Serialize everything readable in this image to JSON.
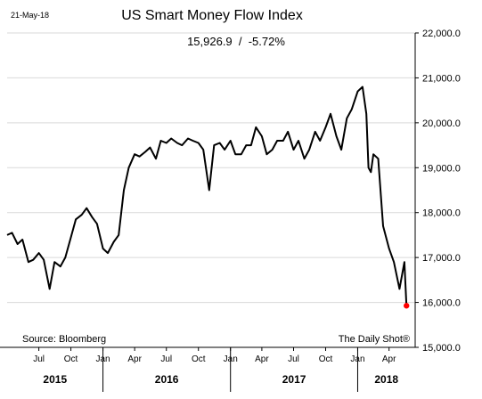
{
  "chart_data": {
    "type": "line",
    "title": "US Smart Money Flow Index",
    "subtitle": "15,926.9  /  -5.72%",
    "date_label": "21-May-18",
    "source": "Source: Bloomberg",
    "credit": "The Daily Shot®",
    "xlabel": "",
    "ylabel": "",
    "grid": true,
    "legend": "none",
    "ylim": [
      15000,
      22000
    ],
    "xlim": [
      "2015-04-01",
      "2018-06-15"
    ],
    "y_ticks": [
      {
        "value": 15000,
        "label": "15,000.0"
      },
      {
        "value": 16000,
        "label": "16,000.0"
      },
      {
        "value": 17000,
        "label": "17,000.0"
      },
      {
        "value": 18000,
        "label": "18,000.0"
      },
      {
        "value": 19000,
        "label": "19,000.0"
      },
      {
        "value": 20000,
        "label": "20,000.0"
      },
      {
        "value": 21000,
        "label": "21,000.0"
      },
      {
        "value": 22000,
        "label": "22,000.0"
      }
    ],
    "month_ticks": [
      {
        "date": "2015-07-01",
        "label": "Jul"
      },
      {
        "date": "2015-10-01",
        "label": "Oct"
      },
      {
        "date": "2016-01-01",
        "label": "Jan"
      },
      {
        "date": "2016-04-01",
        "label": "Apr"
      },
      {
        "date": "2016-07-01",
        "label": "Jul"
      },
      {
        "date": "2016-10-01",
        "label": "Oct"
      },
      {
        "date": "2017-01-01",
        "label": "Jan"
      },
      {
        "date": "2017-04-01",
        "label": "Apr"
      },
      {
        "date": "2017-07-01",
        "label": "Jul"
      },
      {
        "date": "2017-10-01",
        "label": "Oct"
      },
      {
        "date": "2018-01-01",
        "label": "Jan"
      },
      {
        "date": "2018-04-01",
        "label": "Apr"
      }
    ],
    "year_labels": [
      {
        "label": "2015",
        "from": "2015-04-01",
        "to": "2016-01-01"
      },
      {
        "label": "2016",
        "from": "2016-01-01",
        "to": "2017-01-01"
      },
      {
        "label": "2017",
        "from": "2017-01-01",
        "to": "2018-01-01"
      },
      {
        "label": "2018",
        "from": "2018-01-01",
        "to": "2018-06-15"
      }
    ],
    "year_dividers": [
      "2016-01-01",
      "2017-01-01",
      "2018-01-01"
    ],
    "last_point": {
      "date": "2018-05-21",
      "value": 15926.9,
      "color": "#ff0000"
    },
    "line_color": "#000000",
    "grid_color": "#d9d9d9",
    "series": [
      {
        "x": [
          "2015-04-01",
          "2015-04-15",
          "2015-05-01",
          "2015-05-15",
          "2015-06-01",
          "2015-06-15",
          "2015-07-01",
          "2015-07-15",
          "2015-08-01",
          "2015-08-15",
          "2015-09-01",
          "2015-09-15",
          "2015-10-01",
          "2015-10-15",
          "2015-11-01",
          "2015-11-15",
          "2015-12-01",
          "2015-12-15",
          "2016-01-01",
          "2016-01-15",
          "2016-02-01",
          "2016-02-15",
          "2016-03-01",
          "2016-03-15",
          "2016-04-01",
          "2016-04-15",
          "2016-05-01",
          "2016-05-15",
          "2016-06-01",
          "2016-06-15",
          "2016-07-01",
          "2016-07-15",
          "2016-08-01",
          "2016-08-15",
          "2016-09-01",
          "2016-09-15",
          "2016-10-01",
          "2016-10-15",
          "2016-11-01",
          "2016-11-15",
          "2016-12-01",
          "2016-12-15",
          "2017-01-01",
          "2017-01-15",
          "2017-02-01",
          "2017-02-15",
          "2017-03-01",
          "2017-03-15",
          "2017-04-01",
          "2017-04-15",
          "2017-05-01",
          "2017-05-15",
          "2017-06-01",
          "2017-06-15",
          "2017-07-01",
          "2017-07-15",
          "2017-08-01",
          "2017-08-15",
          "2017-09-01",
          "2017-09-15",
          "2017-10-01",
          "2017-10-15",
          "2017-11-01",
          "2017-11-15",
          "2017-12-01",
          "2017-12-15",
          "2018-01-01",
          "2018-01-15",
          "2018-01-26",
          "2018-02-01",
          "2018-02-08",
          "2018-02-15",
          "2018-03-01",
          "2018-03-15",
          "2018-04-01",
          "2018-04-15",
          "2018-05-01",
          "2018-05-15",
          "2018-05-21"
        ],
        "values": [
          17500,
          17550,
          17300,
          17400,
          16900,
          16950,
          17100,
          16950,
          16300,
          16900,
          16800,
          17000,
          17450,
          17850,
          17950,
          18100,
          17900,
          17750,
          17200,
          17100,
          17350,
          17500,
          18500,
          19000,
          19300,
          19250,
          19350,
          19450,
          19200,
          19600,
          19550,
          19650,
          19550,
          19500,
          19650,
          19600,
          19550,
          19400,
          18500,
          19500,
          19550,
          19400,
          19600,
          19300,
          19300,
          19500,
          19500,
          19900,
          19700,
          19300,
          19400,
          19600,
          19600,
          19800,
          19400,
          19600,
          19200,
          19400,
          19800,
          19600,
          19900,
          20200,
          19700,
          19400,
          20100,
          20300,
          20700,
          20800,
          20200,
          19000,
          18900,
          19300,
          19200,
          17700,
          17200,
          16900,
          16300,
          16900,
          15926.9
        ]
      }
    ]
  }
}
